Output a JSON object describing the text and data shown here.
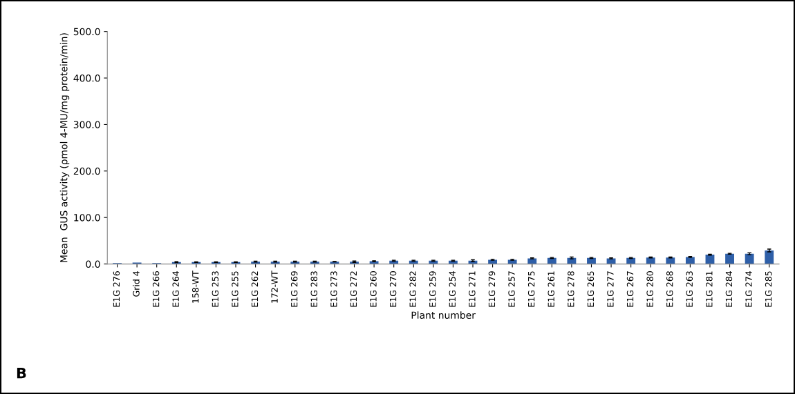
{
  "chart_data": {
    "type": "bar",
    "xlabel": "Plant number",
    "ylabel": "Mean  GUS activity (ρmol 4-MU/mg protein/min)",
    "categories": [
      "E1G 276",
      "Grid 4",
      "E1G 266",
      "E1G 264",
      "158-WT",
      "E1G 253",
      "E1G 255",
      "E1G 262",
      "172-WT",
      "E1G 269",
      "E1G 283",
      "E1G 273",
      "E1G 272",
      "E1G 260",
      "E1G 270",
      "E1G 282",
      "E1G 259",
      "E1G 254",
      "E1G 271",
      "E1G 279",
      "E1G 257",
      "E1G 275",
      "E1G 261",
      "E1G 278",
      "E1G 265",
      "E1G 277",
      "E1G 267",
      "E1G 280",
      "E1G 268",
      "E1G 263",
      "E1G 281",
      "E1G 284",
      "E1G 274",
      "E1G 285"
    ],
    "values": [
      2,
      3,
      2,
      4,
      4,
      4,
      4,
      5,
      5,
      5,
      5,
      5,
      5,
      6,
      7,
      7,
      7,
      7,
      7,
      9,
      9,
      12,
      13,
      13,
      13,
      12,
      13,
      14,
      14,
      15,
      20,
      22,
      22,
      29
    ],
    "errors": [
      null,
      null,
      null,
      1,
      0.5,
      0.5,
      0.5,
      1,
      1,
      1,
      1,
      0.5,
      1.5,
      1,
      1,
      1,
      1,
      1,
      2,
      1,
      1,
      1,
      1,
      2,
      1,
      1,
      1,
      1,
      1,
      1,
      1,
      1,
      2,
      3
    ],
    "color": "#2e5fa8",
    "ylim": [
      0,
      500
    ],
    "yticks": [
      {
        "value": 0,
        "label": "0.0"
      },
      {
        "value": 100,
        "label": "100.0"
      },
      {
        "value": 200,
        "label": "200.0"
      },
      {
        "value": 300,
        "label": "300.0"
      },
      {
        "value": 400,
        "label": "400.0"
      },
      {
        "value": 500,
        "label": "500.0"
      }
    ],
    "grid": false,
    "annotations": [
      "B"
    ]
  }
}
